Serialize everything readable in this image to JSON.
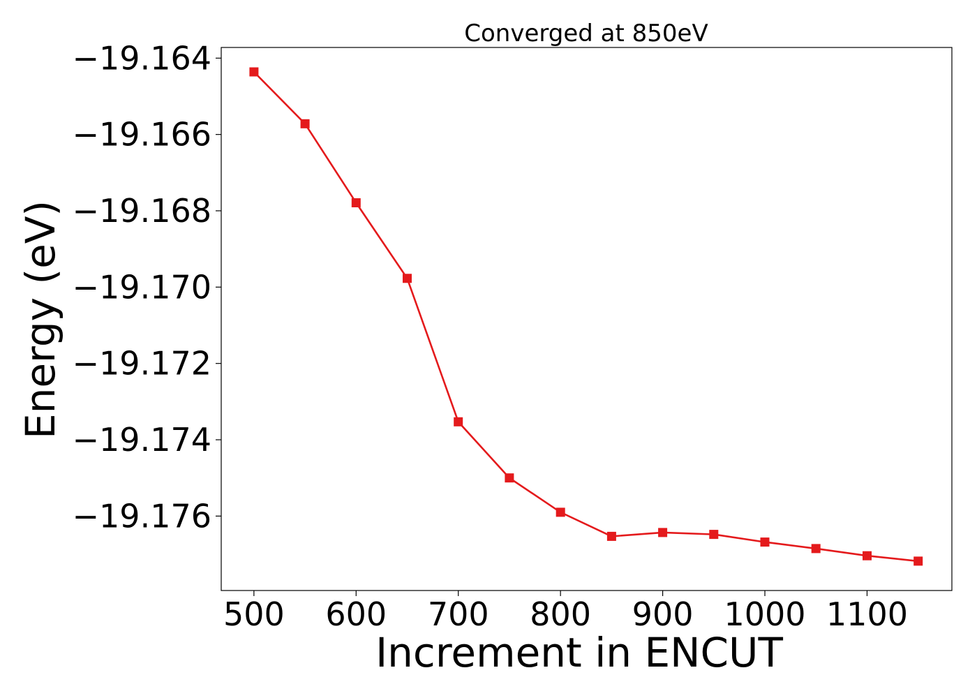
{
  "chart_data": {
    "type": "line",
    "title": "Converged at 850eV",
    "xlabel": "Increment in ENCUT",
    "ylabel": "Energy (eV)",
    "xlim": [
      468,
      1183
    ],
    "ylim": [
      -19.17795,
      -19.16372
    ],
    "x_ticks": [
      500,
      600,
      700,
      800,
      900,
      1000,
      1100
    ],
    "y_ticks": [
      -19.164,
      -19.166,
      -19.168,
      -19.17,
      -19.172,
      -19.174,
      -19.176
    ],
    "y_tick_labels": [
      "−19.164",
      "−19.166",
      "−19.168",
      "−19.170",
      "−19.172",
      "−19.174",
      "−19.176"
    ],
    "grid": false,
    "marker": "square",
    "series": [
      {
        "color": "#e41a1c",
        "x": [
          500,
          550,
          600,
          650,
          700,
          750,
          800,
          850,
          900,
          950,
          1000,
          1050,
          1100,
          1150
        ],
        "y": [
          -19.16436,
          -19.16572,
          -19.16779,
          -19.16977,
          -19.17353,
          -19.175,
          -19.1759,
          -19.17653,
          -19.17643,
          -19.17648,
          -19.17668,
          -19.17685,
          -19.17704,
          -19.17718
        ]
      }
    ]
  }
}
